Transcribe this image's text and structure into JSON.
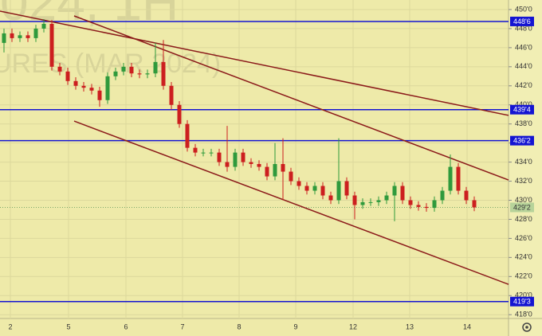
{
  "chart_data": {
    "type": "candlestick",
    "watermark": [
      "024, 1H",
      "URES (MAR 2024)"
    ],
    "open": [
      446.5,
      447.5,
      447,
      447.3,
      447,
      448,
      448.5,
      444,
      443.5,
      442.5,
      442,
      441.8,
      441.5,
      440.5,
      443,
      443.5,
      444,
      443.3,
      443.2,
      443.3,
      444.5,
      442,
      440,
      438,
      435.5,
      435,
      435,
      435,
      434,
      433.5,
      435,
      434,
      433.8,
      433.5,
      432.5,
      433.8,
      433,
      432,
      431.5,
      431,
      431.5,
      430.5,
      430,
      432,
      430.5,
      429.5,
      429.8,
      429.8,
      430,
      430.5,
      431.5,
      430,
      429.5,
      429.3,
      429.2,
      430,
      431,
      433.5,
      431,
      430
    ],
    "high": [
      448,
      448,
      447.7,
      447.7,
      448.4,
      449,
      448.9,
      444.4,
      443.9,
      442.9,
      442.4,
      442.2,
      441.9,
      443.4,
      443.9,
      444.4,
      444.4,
      443.7,
      443.7,
      446.5,
      446.8,
      442.4,
      440.4,
      438.4,
      435.9,
      435.4,
      435.4,
      435.4,
      437.8,
      435.4,
      435.4,
      434.4,
      434.2,
      433.9,
      436,
      436.5,
      433.4,
      432.4,
      431.9,
      431.9,
      431.9,
      430.9,
      436.5,
      432.4,
      430.9,
      430.2,
      430.2,
      430.4,
      430.9,
      431.9,
      431.9,
      430.4,
      429.9,
      429.7,
      430.4,
      431.4,
      434.8,
      433.9,
      431.4,
      430.4
    ],
    "low": [
      445.5,
      446.6,
      446.6,
      446.6,
      446.6,
      447.6,
      443.6,
      443.1,
      442.1,
      441.6,
      441.4,
      441.1,
      439.8,
      440.1,
      442.6,
      443.1,
      442.9,
      442.8,
      442.8,
      442.9,
      441.6,
      439.5,
      437.6,
      435.1,
      434.6,
      434.6,
      434.6,
      433.6,
      433,
      433.1,
      433.6,
      433.4,
      433.1,
      432.1,
      432.1,
      430,
      431.6,
      431.1,
      430.6,
      430.6,
      430.1,
      429.6,
      429.6,
      430.1,
      428,
      429.1,
      429.4,
      429.4,
      429.6,
      427.8,
      429.6,
      429.1,
      428.9,
      428.8,
      428.8,
      429.6,
      430.6,
      430.6,
      429.6,
      428.85
    ],
    "close": [
      447.5,
      447,
      447.3,
      447,
      448,
      448.5,
      444,
      443.5,
      442.5,
      442,
      441.8,
      441.5,
      440.5,
      443,
      443.5,
      444,
      443.3,
      443.2,
      443.3,
      444.5,
      442,
      440,
      438,
      435.5,
      435,
      435,
      435,
      434,
      433.5,
      435,
      434,
      433.8,
      433.5,
      432.5,
      433.8,
      433,
      432,
      431.5,
      431,
      431.5,
      430.5,
      430,
      432,
      430.5,
      429.5,
      429.8,
      429.8,
      430,
      430.5,
      431.5,
      430,
      429.5,
      429.3,
      429.2,
      430,
      431,
      433.5,
      431,
      430,
      429.25
    ],
    "up_color": "#2f9a3c",
    "down_color": "#cc1f1f",
    "xlim": [
      -0.5,
      63.3
    ],
    "xticks": [
      {
        "value": 0.8,
        "label": "2"
      },
      {
        "value": 8.1,
        "label": "5"
      },
      {
        "value": 15.3,
        "label": "6"
      },
      {
        "value": 22.4,
        "label": "7"
      },
      {
        "value": 29.5,
        "label": "8"
      },
      {
        "value": 36.6,
        "label": "9"
      },
      {
        "value": 43.8,
        "label": "12"
      },
      {
        "value": 50.9,
        "label": "13"
      },
      {
        "value": 58.1,
        "label": "14"
      }
    ],
    "ylim": [
      417.6,
      451
    ],
    "yticks": [
      {
        "value": 418,
        "label": "418'0"
      },
      {
        "value": 420,
        "label": "420'0"
      },
      {
        "value": 422,
        "label": "422'0"
      },
      {
        "value": 424,
        "label": "424'0"
      },
      {
        "value": 426,
        "label": "426'0"
      },
      {
        "value": 428,
        "label": "428'0"
      },
      {
        "value": 430,
        "label": "430'0"
      },
      {
        "value": 432,
        "label": "432'0"
      },
      {
        "value": 434,
        "label": "434'0"
      },
      {
        "value": 436,
        "label": "436'0"
      },
      {
        "value": 438,
        "label": "438'0"
      },
      {
        "value": 440,
        "label": "440'0"
      },
      {
        "value": 442,
        "label": "442'0"
      },
      {
        "value": 444,
        "label": "444'0"
      },
      {
        "value": 446,
        "label": "446'0"
      },
      {
        "value": 448,
        "label": "448'0"
      },
      {
        "value": 450,
        "label": "450'0"
      }
    ],
    "grid": true,
    "levels": [
      {
        "value": 448.75,
        "label": "448'6"
      },
      {
        "value": 439.5,
        "label": "439'4"
      },
      {
        "value": 436.25,
        "label": "436'2"
      },
      {
        "value": 419.375,
        "label": "419'3"
      }
    ],
    "level_color": "#1414d2",
    "last_price": {
      "value": 429.25,
      "label": "429'2"
    },
    "trend_lines": [
      {
        "x": [
          -0.5,
          63.3
        ],
        "y": [
          449.83,
          438.9
        ]
      },
      {
        "x": [
          8.8,
          63.3
        ],
        "y": [
          449.33,
          432.12
        ]
      },
      {
        "x": [
          8.8,
          63.3
        ],
        "y": [
          438.3,
          421.18
        ]
      }
    ],
    "trend_color": "#8b1a1a"
  }
}
